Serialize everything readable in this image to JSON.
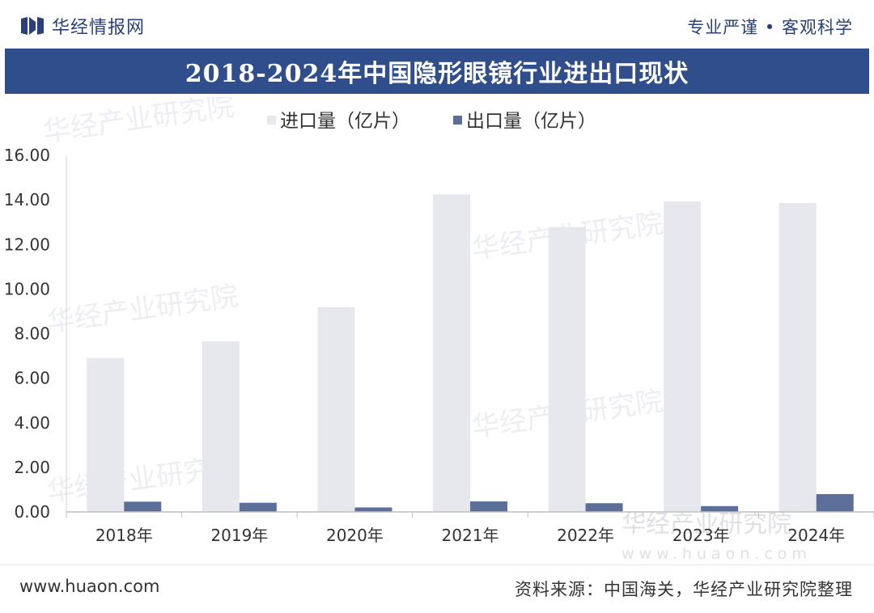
{
  "header": {
    "brand_name": "华经情报网",
    "slogan": "专业严谨 • 客观科学"
  },
  "title": "2018-2024年中国隐形眼镜行业进出口现状",
  "chart_data": {
    "type": "bar",
    "categories": [
      "2018年",
      "2019年",
      "2020年",
      "2021年",
      "2022年",
      "2023年",
      "2024年"
    ],
    "series": [
      {
        "name": "进口量（亿片）",
        "color": "#e6e8ee",
        "values": [
          6.9,
          7.65,
          9.18,
          14.25,
          12.78,
          13.93,
          13.86
        ]
      },
      {
        "name": "出口量（亿片）",
        "color": "#5c6e9a",
        "values": [
          0.46,
          0.41,
          0.2,
          0.47,
          0.39,
          0.26,
          0.8
        ]
      }
    ],
    "ylim": [
      0,
      16
    ],
    "yticks": [
      "0.00",
      "2.00",
      "4.00",
      "6.00",
      "8.00",
      "10.00",
      "12.00",
      "14.00",
      "16.00"
    ],
    "tick_values": [
      0,
      2,
      4,
      6,
      8,
      10,
      12,
      14,
      16
    ],
    "xlabel": "",
    "ylabel": "",
    "grid": false,
    "legend": "top-center"
  },
  "watermark": {
    "text": "华经产业研究院",
    "url": "www.huaon.com"
  },
  "footer": {
    "site_url": "www.huaon.com",
    "source": "资料来源：中国海关，华经产业研究院整理"
  }
}
